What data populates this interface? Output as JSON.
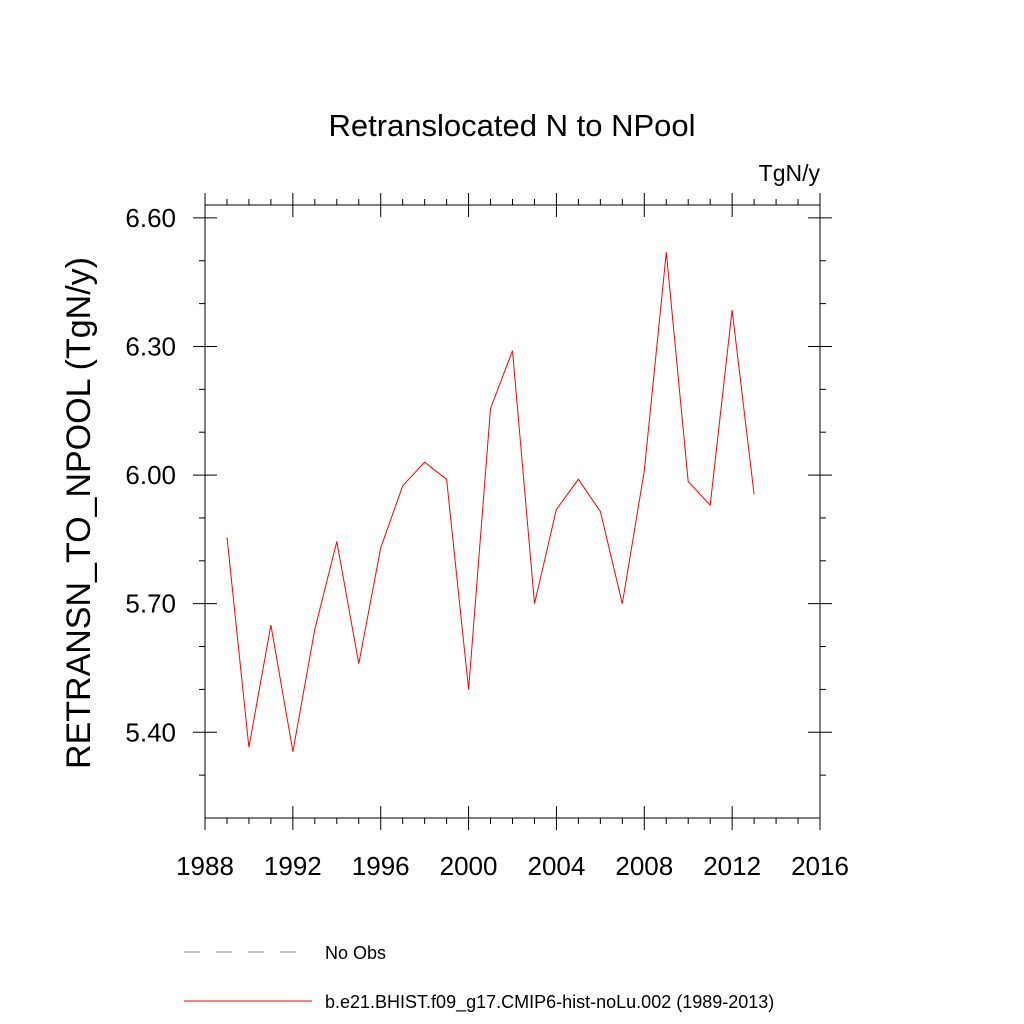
{
  "chart_data": {
    "type": "line",
    "title": "Retranslocated N to NPool",
    "units": "TgN/y",
    "ylabel": "RETRANSN_TO_NPOOL  (TgN/y)",
    "xlabel": "",
    "xlim": [
      1988,
      2016
    ],
    "ylim": [
      5.2,
      6.63
    ],
    "xticks": [
      1988,
      1992,
      1996,
      2000,
      2004,
      2008,
      2012,
      2016
    ],
    "xtick_labels": [
      "1988",
      "1992",
      "1996",
      "2000",
      "2004",
      "2008",
      "2012",
      "2016"
    ],
    "yticks": [
      5.4,
      5.7,
      6.0,
      6.3,
      6.6
    ],
    "ytick_labels": [
      "5.40",
      "5.70",
      "6.00",
      "6.30",
      "6.60"
    ],
    "grid": false,
    "legend_position": "bottom",
    "series": [
      {
        "name": "b.e21.BHIST.f09_g17.CMIP6-hist-noLu.002 (1989-2013)",
        "color": "#ff0000",
        "style": "solid",
        "x": [
          1989,
          1990,
          1991,
          1992,
          1993,
          1994,
          1995,
          1996,
          1997,
          1998,
          1999,
          2000,
          2001,
          2002,
          2003,
          2004,
          2005,
          2006,
          2007,
          2008,
          2009,
          2010,
          2011,
          2012,
          2013
        ],
        "y": [
          5.855,
          5.365,
          5.65,
          5.355,
          5.64,
          5.845,
          5.56,
          5.83,
          5.975,
          6.03,
          5.99,
          5.5,
          6.155,
          6.29,
          5.7,
          5.92,
          5.99,
          5.915,
          5.7,
          6.01,
          6.52,
          5.985,
          5.93,
          6.385,
          5.955
        ]
      }
    ],
    "legend": [
      {
        "label": "No Obs",
        "color": "#8080c0",
        "style": "dashed"
      },
      {
        "label": "b.e21.BHIST.f09_g17.CMIP6-hist-noLu.002 (1989-2013)",
        "color": "#ff0000",
        "style": "solid"
      }
    ]
  }
}
